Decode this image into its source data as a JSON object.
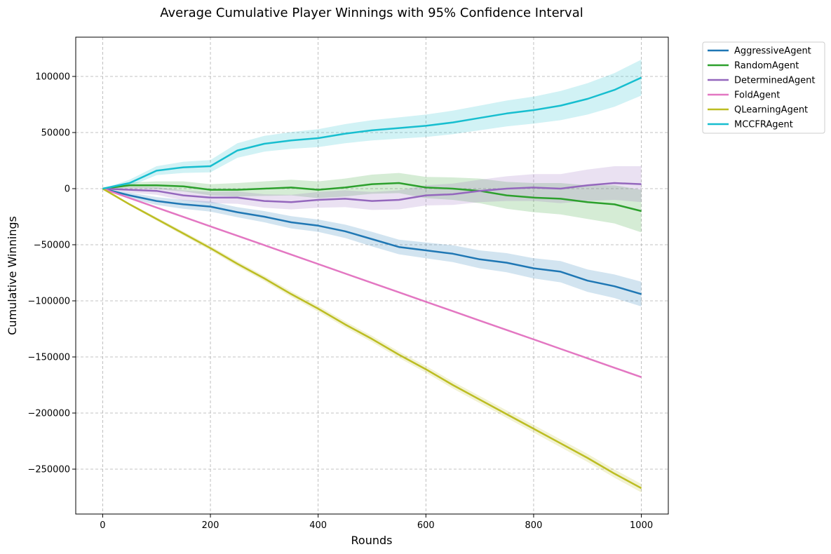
{
  "chart_data": {
    "type": "line",
    "title": "Average Cumulative Player Winnings with 95% Confidence Interval",
    "xlabel": "Rounds",
    "ylabel": "Cumulative Winnings",
    "xlim": [
      -50,
      1050
    ],
    "ylim": [
      -290000,
      135000
    ],
    "xticks": [
      0,
      200,
      400,
      600,
      800,
      1000
    ],
    "yticks": [
      100000,
      50000,
      0,
      -50000,
      -100000,
      -150000,
      -200000,
      -250000
    ],
    "xtick_labels": [
      "0",
      "200",
      "400",
      "600",
      "800",
      "1000"
    ],
    "ytick_labels": [
      "100000",
      "50000",
      "0",
      "−50000",
      "−100000",
      "−150000",
      "−200000",
      "−250000"
    ],
    "grid": true,
    "legend_position": "outside-top-right",
    "x": [
      0,
      50,
      100,
      150,
      200,
      250,
      300,
      350,
      400,
      450,
      500,
      550,
      600,
      650,
      700,
      750,
      800,
      850,
      900,
      950,
      1000
    ],
    "series": [
      {
        "name": "AggressiveAgent",
        "color": "#1f77b4",
        "values": [
          0,
          -6000,
          -11000,
          -14000,
          -16000,
          -21000,
          -25000,
          -30000,
          -33000,
          -38000,
          -45000,
          -52000,
          -55000,
          -58000,
          -63000,
          -66000,
          -71000,
          -74000,
          -82000,
          -87000,
          -94000
        ],
        "ci_halfwidth": [
          0,
          2500,
          3500,
          4000,
          4500,
          4500,
          5000,
          5500,
          5500,
          6000,
          6500,
          6500,
          7000,
          7500,
          8000,
          8500,
          9000,
          9500,
          10000,
          10500,
          11000
        ]
      },
      {
        "name": "RandomAgent",
        "color": "#2ca02c",
        "values": [
          0,
          3000,
          3000,
          2000,
          -1000,
          -1000,
          0,
          1000,
          -1000,
          1000,
          4000,
          5000,
          1000,
          0,
          -2000,
          -6000,
          -8000,
          -9000,
          -12000,
          -14000,
          -20000
        ],
        "ci_halfwidth": [
          0,
          2500,
          3500,
          4500,
          5000,
          6000,
          6500,
          7000,
          7500,
          8000,
          8500,
          9000,
          9500,
          10000,
          11000,
          12000,
          13000,
          14000,
          15000,
          17000,
          19000
        ]
      },
      {
        "name": "DeterminedAgent",
        "color": "#9467bd",
        "values": [
          0,
          -1000,
          -2000,
          -6000,
          -8000,
          -8000,
          -11000,
          -12000,
          -10000,
          -9000,
          -11000,
          -10000,
          -6000,
          -5000,
          -2000,
          0,
          1000,
          0,
          3000,
          5000,
          4000
        ],
        "ci_halfwidth": [
          0,
          2500,
          3500,
          4500,
          5000,
          5500,
          6000,
          6500,
          7000,
          7500,
          8000,
          8500,
          9000,
          9500,
          10000,
          11000,
          12000,
          13000,
          14000,
          15000,
          16000
        ]
      },
      {
        "name": "FoldAgent",
        "color": "#e377c2",
        "values": [
          0,
          -8400,
          -16800,
          -25200,
          -33600,
          -42000,
          -50400,
          -58800,
          -67200,
          -75600,
          -84000,
          -92400,
          -100800,
          -109200,
          -117600,
          -126000,
          -134400,
          -142800,
          -151200,
          -159600,
          -168000
        ],
        "ci_halfwidth": [
          0,
          150,
          200,
          250,
          300,
          300,
          300,
          300,
          300,
          300,
          300,
          300,
          300,
          300,
          300,
          300,
          300,
          300,
          300,
          300,
          300
        ]
      },
      {
        "name": "QLearningAgent",
        "color": "#bcbd22",
        "values": [
          0,
          -14000,
          -27000,
          -40000,
          -53000,
          -67000,
          -80000,
          -94000,
          -107000,
          -121000,
          -134000,
          -148000,
          -161000,
          -175000,
          -188000,
          -201000,
          -214000,
          -227000,
          -240000,
          -254000,
          -267000
        ],
        "ci_halfwidth": [
          0,
          1000,
          1500,
          1800,
          2000,
          2200,
          2400,
          2500,
          2600,
          2700,
          2800,
          2900,
          3000,
          3100,
          3200,
          3300,
          3400,
          3500,
          3600,
          3700,
          3800
        ]
      },
      {
        "name": "MCCFRAgent",
        "color": "#17becf",
        "values": [
          0,
          5000,
          16000,
          19000,
          20000,
          34000,
          40000,
          43000,
          45000,
          49000,
          52000,
          54000,
          56000,
          59000,
          63000,
          67000,
          70000,
          74000,
          80000,
          88000,
          99000
        ],
        "ci_halfwidth": [
          0,
          3000,
          4000,
          5000,
          5500,
          6500,
          7000,
          7500,
          8000,
          8500,
          9000,
          9500,
          10000,
          10500,
          11000,
          11500,
          12000,
          13000,
          14000,
          15000,
          16000
        ]
      }
    ]
  }
}
